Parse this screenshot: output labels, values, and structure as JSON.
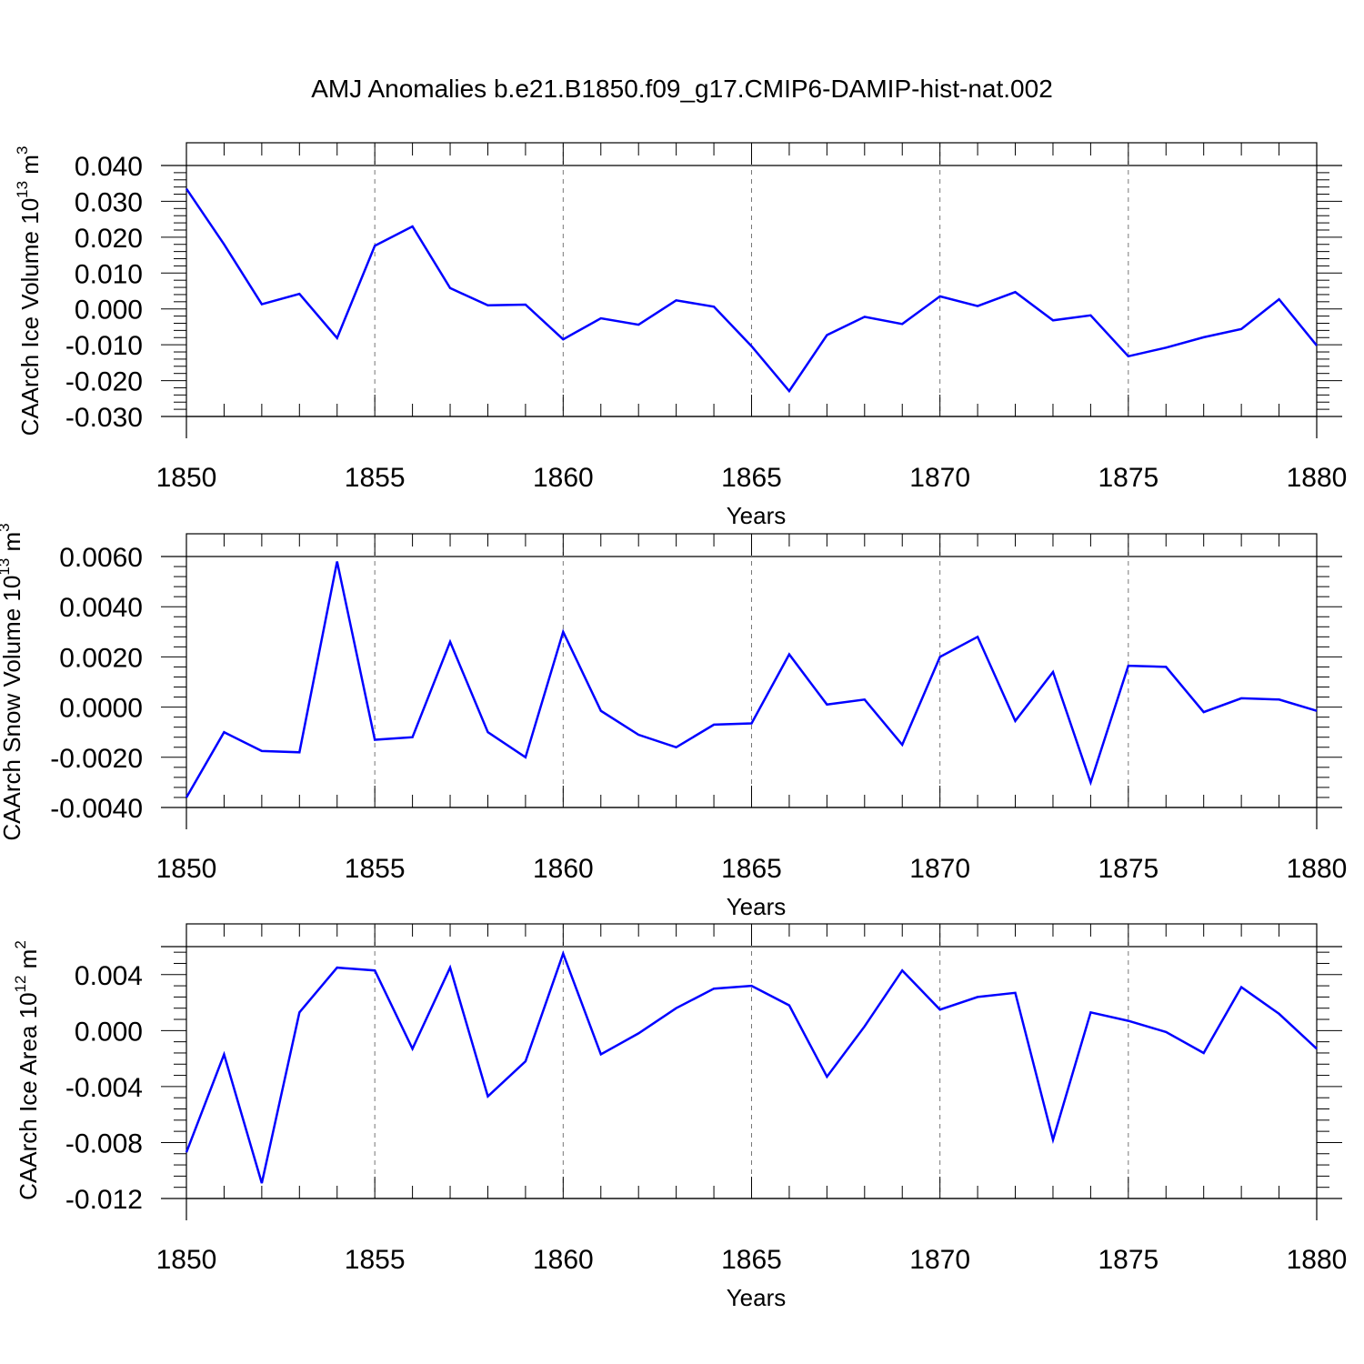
{
  "title": "AMJ Anomalies b.e21.B1850.f09_g17.CMIP6-DAMIP-hist-nat.002",
  "line_color": "#0000ff",
  "chart_data": [
    {
      "type": "line",
      "ylabel": "CAArch Ice Volume 10",
      "ylabel_exp": "13",
      "ylabel_unit": " m",
      "ylabel_unit_exp": "3",
      "xlabel": "Years",
      "xlim": [
        1850,
        1880
      ],
      "ylim": [
        -0.03,
        0.04
      ],
      "y_ticks": [
        -0.03,
        -0.02,
        -0.01,
        0.0,
        0.01,
        0.02,
        0.03,
        0.04
      ],
      "y_tick_labels": [
        "-0.030",
        "-0.020",
        "-0.010",
        "0.000",
        "0.010",
        "0.020",
        "0.030",
        "0.040"
      ],
      "zero_ref": 0.04,
      "x_ticks": [
        1850,
        1855,
        1860,
        1865,
        1870,
        1875,
        1880
      ],
      "x_tick_labels": [
        "1850",
        "1855",
        "1860",
        "1865",
        "1870",
        "1875",
        "1880"
      ],
      "x": [
        1850,
        1851,
        1852,
        1853,
        1854,
        1855,
        1856,
        1857,
        1858,
        1859,
        1860,
        1861,
        1862,
        1863,
        1864,
        1865,
        1866,
        1867,
        1868,
        1869,
        1870,
        1871,
        1872,
        1873,
        1874,
        1875,
        1876,
        1877,
        1878,
        1879,
        1880
      ],
      "values": [
        0.0335,
        0.018,
        0.0013,
        0.0042,
        -0.0081,
        0.0176,
        0.023,
        0.0058,
        0.001,
        0.0012,
        -0.0085,
        -0.0026,
        -0.0044,
        0.0024,
        0.0006,
        -0.0104,
        -0.0229,
        -0.0073,
        -0.0022,
        -0.0042,
        0.0035,
        0.0008,
        0.0047,
        -0.0032,
        -0.0018,
        -0.0132,
        -0.0108,
        -0.0079,
        -0.0056,
        0.0027,
        -0.0102
      ]
    },
    {
      "type": "line",
      "ylabel": "CAArch Snow Volume 10",
      "ylabel_exp": "13",
      "ylabel_unit": " m",
      "ylabel_unit_exp": "3",
      "xlabel": "Years",
      "xlim": [
        1850,
        1880
      ],
      "ylim": [
        -0.004,
        0.006
      ],
      "y_ticks": [
        -0.004,
        -0.002,
        0.0,
        0.002,
        0.004,
        0.006
      ],
      "y_tick_labels": [
        "-0.0040",
        "-0.0020",
        "0.0000",
        "0.0020",
        "0.0040",
        "0.0060"
      ],
      "zero_ref": 0.006,
      "x_ticks": [
        1850,
        1855,
        1860,
        1865,
        1870,
        1875,
        1880
      ],
      "x_tick_labels": [
        "1850",
        "1855",
        "1860",
        "1865",
        "1870",
        "1875",
        "1880"
      ],
      "x": [
        1850,
        1851,
        1852,
        1853,
        1854,
        1855,
        1856,
        1857,
        1858,
        1859,
        1860,
        1861,
        1862,
        1863,
        1864,
        1865,
        1866,
        1867,
        1868,
        1869,
        1870,
        1871,
        1872,
        1873,
        1874,
        1875,
        1876,
        1877,
        1878,
        1879,
        1880
      ],
      "values": [
        -0.0036,
        -0.001,
        -0.00175,
        -0.0018,
        0.0058,
        -0.0013,
        -0.0012,
        0.0026,
        -0.001,
        -0.002,
        0.003,
        -0.00015,
        -0.0011,
        -0.0016,
        -0.0007,
        -0.00065,
        0.0021,
        0.0001,
        0.0003,
        -0.0015,
        0.002,
        0.0028,
        -0.00055,
        0.0014,
        -0.003,
        0.00165,
        0.0016,
        -0.0002,
        0.00035,
        0.0003,
        -0.00015
      ]
    },
    {
      "type": "line",
      "ylabel": "CAArch Ice Area 10",
      "ylabel_exp": "12",
      "ylabel_unit": " m",
      "ylabel_unit_exp": "2",
      "xlabel": "Years",
      "xlim": [
        1850,
        1880
      ],
      "ylim": [
        -0.012,
        0.006
      ],
      "y_ticks": [
        -0.012,
        -0.008,
        -0.004,
        0.0,
        0.004
      ],
      "y_tick_labels": [
        "-0.012",
        "-0.008",
        "-0.004",
        "0.000",
        "0.004"
      ],
      "zero_ref": 0.006,
      "x_ticks": [
        1850,
        1855,
        1860,
        1865,
        1870,
        1875,
        1880
      ],
      "x_tick_labels": [
        "1850",
        "1855",
        "1860",
        "1865",
        "1870",
        "1875",
        "1880"
      ],
      "x": [
        1850,
        1851,
        1852,
        1853,
        1854,
        1855,
        1856,
        1857,
        1858,
        1859,
        1860,
        1861,
        1862,
        1863,
        1864,
        1865,
        1866,
        1867,
        1868,
        1869,
        1870,
        1871,
        1872,
        1873,
        1874,
        1875,
        1876,
        1877,
        1878,
        1879,
        1880
      ],
      "values": [
        -0.0087,
        -0.0017,
        -0.0109,
        0.0013,
        0.0045,
        0.0043,
        -0.0013,
        0.0045,
        -0.0047,
        -0.0022,
        0.0055,
        -0.0017,
        -0.0002,
        0.0016,
        0.003,
        0.0032,
        0.0018,
        -0.0033,
        0.0003,
        0.0043,
        0.0015,
        0.0024,
        0.0027,
        -0.0078,
        0.0013,
        0.0007,
        -0.0001,
        -0.0016,
        0.0031,
        0.0012,
        -0.0013
      ]
    }
  ]
}
